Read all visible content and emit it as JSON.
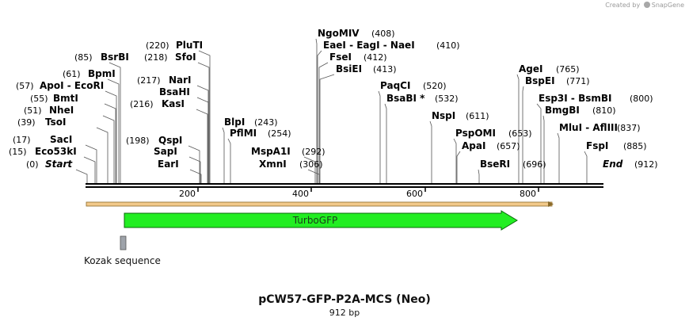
{
  "credit": {
    "prefix": "Created by",
    "brand": "SnapGene"
  },
  "title": "pCW57-GFP-P2A-MCS (Neo)",
  "length_label": "912 bp",
  "sequence_length": 912,
  "ruler_ticks": [
    "200",
    "400",
    "600",
    "800"
  ],
  "enzymes": [
    {
      "name": "Start",
      "pos": "(0)",
      "italic": true
    },
    {
      "name": "Eco53kI",
      "pos": "(15)"
    },
    {
      "name": "SacI",
      "pos": "(17)"
    },
    {
      "name": "TsoI",
      "pos": "(39)"
    },
    {
      "name": "NheI",
      "pos": "(51)"
    },
    {
      "name": "BmtI",
      "pos": "(55)"
    },
    {
      "name": "ApoI  -  EcoRI",
      "pos": "(57)"
    },
    {
      "name": "BpmI",
      "pos": "(61)"
    },
    {
      "name": "BsrBI",
      "pos": "(85)"
    },
    {
      "name": "QspI",
      "pos": "(198)"
    },
    {
      "name": "SapI",
      "pos": ""
    },
    {
      "name": "EarI",
      "pos": ""
    },
    {
      "name": "KasI",
      "pos": "(216)"
    },
    {
      "name": "BsaHI",
      "pos": ""
    },
    {
      "name": "NarI",
      "pos": "(217)"
    },
    {
      "name": "SfoI",
      "pos": "(218)"
    },
    {
      "name": "PluTI",
      "pos": "(220)"
    },
    {
      "name": "BlpI",
      "pos": "(243)"
    },
    {
      "name": "PflMI",
      "pos": "(254)"
    },
    {
      "name": "MspA1I",
      "pos": "(292)"
    },
    {
      "name": "XmnI",
      "pos": "(306)"
    },
    {
      "name": "NgoMIV",
      "pos": "(408)"
    },
    {
      "name": "EaeI  -  EagI  -  NaeI",
      "pos": "(410)"
    },
    {
      "name": "FseI",
      "pos": "(412)"
    },
    {
      "name": "BsiEI",
      "pos": "(413)"
    },
    {
      "name": "PaqCI",
      "pos": "(520)"
    },
    {
      "name": "BsaBI *",
      "pos": "(532)"
    },
    {
      "name": "NspI",
      "pos": "(611)"
    },
    {
      "name": "PspOMI",
      "pos": "(653)"
    },
    {
      "name": "ApaI",
      "pos": "(657)"
    },
    {
      "name": "BseRI",
      "pos": "(696)"
    },
    {
      "name": "AgeI",
      "pos": "(765)"
    },
    {
      "name": "BspEI",
      "pos": "(771)"
    },
    {
      "name": "Esp3I  -  BsmBI",
      "pos": "(800)"
    },
    {
      "name": "BmgBI",
      "pos": "(810)"
    },
    {
      "name": "MluI  -  AflIII",
      "pos": "(837)"
    },
    {
      "name": "FspI",
      "pos": "(885)"
    },
    {
      "name": "End",
      "pos": "(912)",
      "italic": true
    }
  ],
  "features": [
    {
      "name": "TurboGFP",
      "start": 70,
      "end": 768,
      "direction": "forward",
      "color": "#22ee22"
    },
    {
      "name": "Kozak sequence",
      "start": 61,
      "end": 70,
      "color": "#9ea3aa"
    }
  ],
  "colors": {
    "backbone": "#000000",
    "orf": "#f2c98a",
    "orf_border": "#8a6a2a"
  }
}
